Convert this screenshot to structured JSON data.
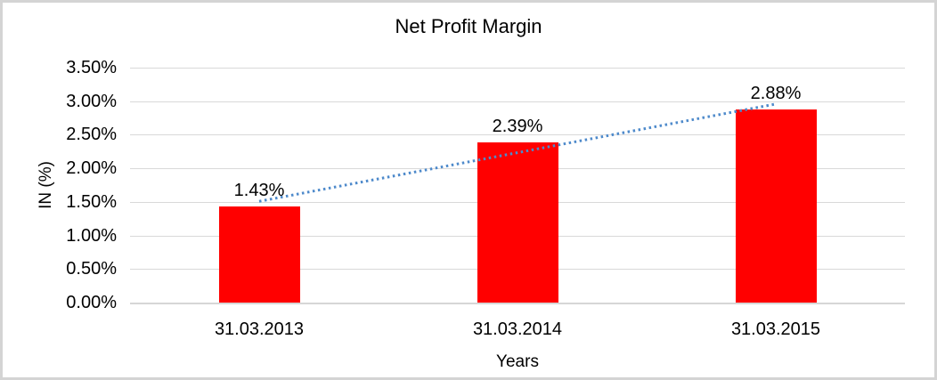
{
  "chart_data": {
    "type": "bar",
    "title": "Net Profit Margin",
    "categories": [
      "31.03.2013",
      "31.03.2014",
      "31.03.2015"
    ],
    "values": [
      1.43,
      2.39,
      2.88
    ],
    "data_labels": [
      "1.43%",
      "2.39%",
      "2.88%"
    ],
    "xlabel": "Years",
    "ylabel": "IN (%)",
    "ylim": [
      0,
      3.5
    ],
    "ytick_step": 0.5,
    "yticks": [
      "0.00%",
      "0.50%",
      "1.00%",
      "1.50%",
      "2.00%",
      "2.50%",
      "3.00%",
      "3.50%"
    ],
    "grid": true,
    "legend": "none",
    "bar_color": "#ff0000",
    "gridline_color": "#d9d9d9",
    "trendline": {
      "type": "linear",
      "style": "dotted",
      "color": "#4e8acb"
    }
  }
}
